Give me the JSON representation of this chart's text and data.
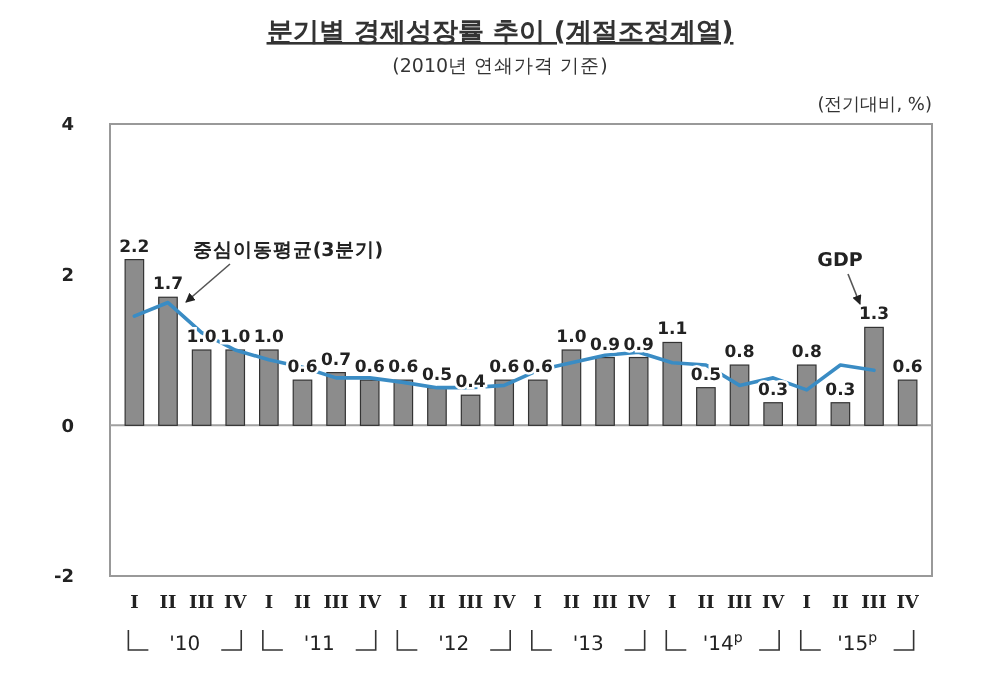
{
  "chart_data": {
    "type": "bar",
    "title": "분기별 경제성장률 추이 (계절조정계열)",
    "subtitle": "(2010년 연쇄가격 기준)",
    "ylabel": "(전기대비, %)",
    "categories": [
      "I",
      "II",
      "III",
      "IV",
      "I",
      "II",
      "III",
      "IV",
      "I",
      "II",
      "III",
      "IV",
      "I",
      "II",
      "III",
      "IV",
      "I",
      "II",
      "III",
      "IV",
      "I",
      "II",
      "III",
      "IV"
    ],
    "series": [
      {
        "name": "GDP",
        "color": "#8c8c8c",
        "values": [
          2.2,
          1.7,
          1.0,
          1.0,
          1.0,
          0.6,
          0.7,
          0.6,
          0.6,
          0.5,
          0.4,
          0.6,
          0.6,
          1.0,
          0.9,
          0.9,
          1.1,
          0.5,
          0.8,
          0.3,
          0.8,
          0.3,
          1.3,
          0.6
        ],
        "value_labels": [
          "2.2",
          "1.7",
          "1.0",
          "1.0",
          "1.0",
          "0.6",
          "0.7",
          "0.6",
          "0.6",
          "0.5",
          "0.4",
          "0.6",
          "0.6",
          "1.0",
          "0.9",
          "0.9",
          "1.1",
          "0.5",
          "0.8",
          "0.3",
          "0.8",
          "0.3",
          "1.3",
          "0.6"
        ]
      },
      {
        "name": "중심이동평균(3분기)",
        "type": "line",
        "color": "#3a8cc4",
        "values": [
          1.45,
          1.63,
          1.23,
          1.0,
          0.87,
          0.77,
          0.63,
          0.63,
          0.57,
          0.5,
          0.5,
          0.53,
          0.73,
          0.83,
          0.93,
          0.97,
          0.83,
          0.8,
          0.53,
          0.63,
          0.47,
          0.8,
          0.73,
          null
        ]
      }
    ],
    "ylim": [
      -2,
      4
    ],
    "yticks": [
      -2,
      0,
      2,
      4
    ],
    "grid": false,
    "legend": false,
    "ref_lines": [
      {
        "axis": "y",
        "value": 0,
        "color": "#a0a0a0"
      }
    ],
    "annotations": [
      "'10",
      "'11",
      "'12",
      "'13",
      "'14$^{p}$",
      "'15$^{p}$"
    ]
  }
}
